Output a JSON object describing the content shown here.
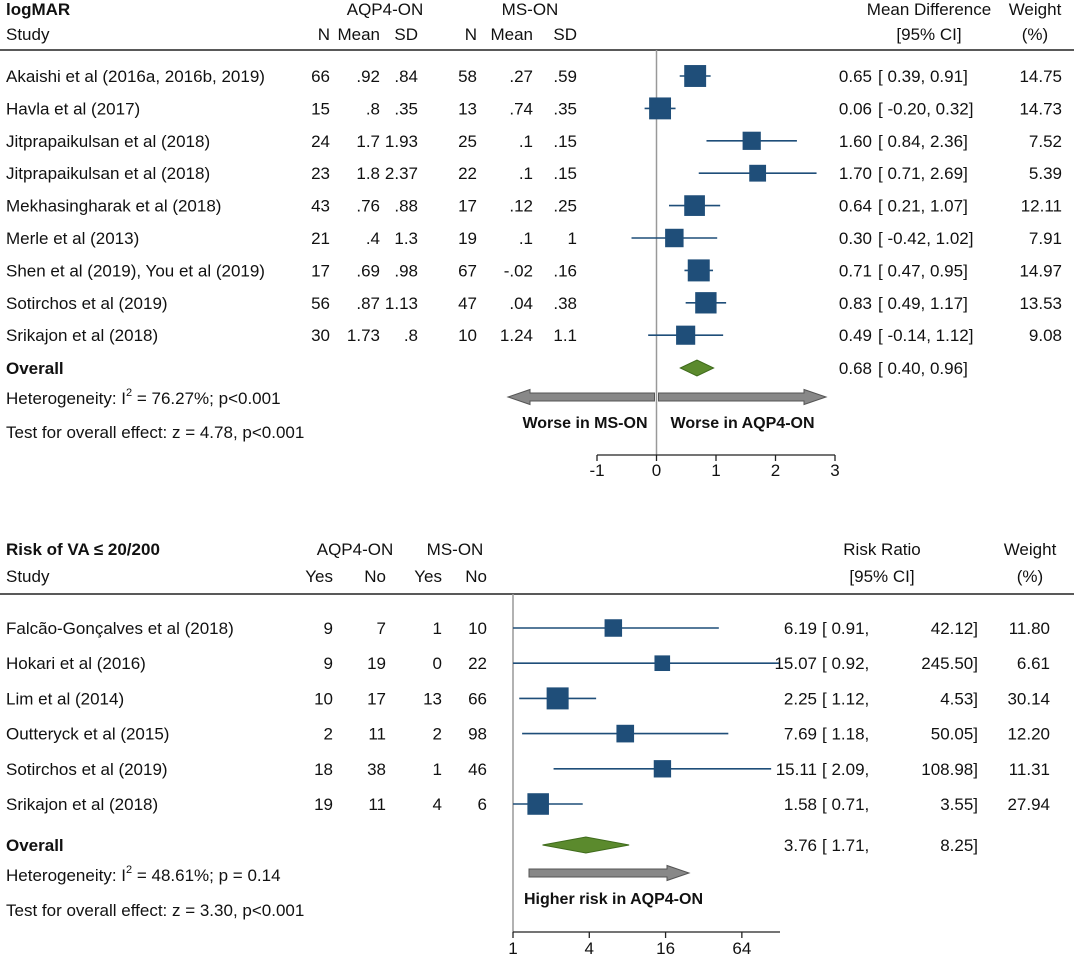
{
  "colors": {
    "marker": "#1f4e79",
    "diamond": "#5b8a2d",
    "arrow": "#888888",
    "axis": "#999999"
  },
  "chart_data": [
    {
      "type": "forest",
      "title": "logMAR",
      "headers": {
        "study": "Study",
        "group1": "AQP4-ON",
        "group2": "MS-ON",
        "cols1": [
          "N",
          "Mean",
          "SD"
        ],
        "cols2": [
          "N",
          "Mean",
          "SD"
        ],
        "effect_line1": "Mean Difference",
        "effect_line2": "[95% CI]",
        "weight_line1": "Weight",
        "weight_line2": "(%)"
      },
      "x_scale": "linear",
      "xlim": [
        -1,
        3
      ],
      "xticks": [
        -1,
        0,
        1,
        2,
        3
      ],
      "xtick_labels": [
        "-1",
        "0",
        "1",
        "2",
        "3"
      ],
      "null_value": 0,
      "studies": [
        {
          "name": "Akaishi et al (2016a, 2016b, 2019)",
          "g1": [
            "66",
            ".92",
            ".84"
          ],
          "g2": [
            "58",
            ".27",
            ".59"
          ],
          "est": 0.65,
          "lo": 0.39,
          "hi": 0.91,
          "est_text": "0.65",
          "ci_text": "[  0.39,  0.91]",
          "weight": "14.75"
        },
        {
          "name": "Havla et al (2017)",
          "g1": [
            "15",
            ".8",
            ".35"
          ],
          "g2": [
            "13",
            ".74",
            ".35"
          ],
          "est": 0.06,
          "lo": -0.2,
          "hi": 0.32,
          "est_text": "0.06",
          "ci_text": "[ -0.20,  0.32]",
          "weight": "14.73"
        },
        {
          "name": "Jitprapaikulsan et al (2018)",
          "g1": [
            "24",
            "1.7",
            "1.93"
          ],
          "g2": [
            "25",
            ".1",
            ".15"
          ],
          "est": 1.6,
          "lo": 0.84,
          "hi": 2.36,
          "est_text": "1.60",
          "ci_text": "[  0.84,  2.36]",
          "weight": "7.52"
        },
        {
          "name": "Jitprapaikulsan et al (2018)",
          "g1": [
            "23",
            "1.8",
            "2.37"
          ],
          "g2": [
            "22",
            ".1",
            ".15"
          ],
          "est": 1.7,
          "lo": 0.71,
          "hi": 2.69,
          "est_text": "1.70",
          "ci_text": "[  0.71,  2.69]",
          "weight": "5.39"
        },
        {
          "name": "Mekhasingharak et al (2018)",
          "g1": [
            "43",
            ".76",
            ".88"
          ],
          "g2": [
            "17",
            ".12",
            ".25"
          ],
          "est": 0.64,
          "lo": 0.21,
          "hi": 1.07,
          "est_text": "0.64",
          "ci_text": "[  0.21,  1.07]",
          "weight": "12.11"
        },
        {
          "name": "Merle et al (2013)",
          "g1": [
            "21",
            ".4",
            "1.3"
          ],
          "g2": [
            "19",
            ".1",
            "1"
          ],
          "est": 0.3,
          "lo": -0.42,
          "hi": 1.02,
          "est_text": "0.30",
          "ci_text": "[ -0.42,  1.02]",
          "weight": "7.91"
        },
        {
          "name": "Shen et al (2019), You et al (2019)",
          "g1": [
            "17",
            ".69",
            ".98"
          ],
          "g2": [
            "67",
            "-.02",
            ".16"
          ],
          "est": 0.71,
          "lo": 0.47,
          "hi": 0.95,
          "est_text": "0.71",
          "ci_text": "[  0.47,  0.95]",
          "weight": "14.97"
        },
        {
          "name": "Sotirchos et al (2019)",
          "g1": [
            "56",
            ".87",
            "1.13"
          ],
          "g2": [
            "47",
            ".04",
            ".38"
          ],
          "est": 0.83,
          "lo": 0.49,
          "hi": 1.17,
          "est_text": "0.83",
          "ci_text": "[  0.49,  1.17]",
          "weight": "13.53"
        },
        {
          "name": "Srikajon et al (2018)",
          "g1": [
            "30",
            "1.73",
            ".8"
          ],
          "g2": [
            "10",
            "1.24",
            "1.1"
          ],
          "est": 0.49,
          "lo": -0.14,
          "hi": 1.12,
          "est_text": "0.49",
          "ci_text": "[ -0.14,  1.12]",
          "weight": "9.08"
        }
      ],
      "overall": {
        "label": "Overall",
        "est": 0.68,
        "lo": 0.4,
        "hi": 0.96,
        "est_text": "0.68",
        "ci_text": "[  0.40,  0.96]"
      },
      "heterogeneity": {
        "prefix": "Heterogeneity: I",
        "sup": "2",
        "suffix": " = 76.27%; p<0.001"
      },
      "overall_test": "Test for overall effect: z = 4.78, p<0.001",
      "arrows": [
        {
          "label": "Worse in MS-ON",
          "direction": "left"
        },
        {
          "label": "Worse in AQP4-ON",
          "direction": "right"
        }
      ]
    },
    {
      "type": "forest",
      "title": "Risk of VA ≤ 20/200",
      "headers": {
        "study": "Study",
        "group1": "AQP4-ON",
        "group2": "MS-ON",
        "cols1": [
          "Yes",
          "No"
        ],
        "cols2": [
          "Yes",
          "No"
        ],
        "effect_line1": "Risk Ratio",
        "effect_line2": "[95% CI]",
        "weight_line1": "Weight",
        "weight_line2": "(%)"
      },
      "x_scale": "log2",
      "xlim": [
        1,
        128
      ],
      "xticks": [
        1,
        4,
        16,
        64
      ],
      "xtick_labels": [
        "1",
        "4",
        "16",
        "64"
      ],
      "null_value": 1,
      "studies": [
        {
          "name": "Falcão-Gonçalves et al (2018)",
          "g1": [
            "9",
            "7"
          ],
          "g2": [
            "1",
            "10"
          ],
          "est": 6.19,
          "lo": 0.91,
          "hi": 42.12,
          "est_text": "6.19",
          "ci_text": "[ 0.91,",
          "hi_text": "42.12]",
          "weight": "11.80"
        },
        {
          "name": "Hokari et al (2016)",
          "g1": [
            "9",
            "19"
          ],
          "g2": [
            "0",
            "22"
          ],
          "est": 15.07,
          "lo": 0.92,
          "hi": 245.5,
          "est_text": "15.07",
          "ci_text": "[ 0.92,",
          "hi_text": "245.50]",
          "weight": "6.61"
        },
        {
          "name": "Lim et al (2014)",
          "g1": [
            "10",
            "17"
          ],
          "g2": [
            "13",
            "66"
          ],
          "est": 2.25,
          "lo": 1.12,
          "hi": 4.53,
          "est_text": "2.25",
          "ci_text": "[ 1.12,",
          "hi_text": "4.53]",
          "weight": "30.14"
        },
        {
          "name": "Outteryck et al (2015)",
          "g1": [
            "2",
            "11"
          ],
          "g2": [
            "2",
            "98"
          ],
          "est": 7.69,
          "lo": 1.18,
          "hi": 50.05,
          "est_text": "7.69",
          "ci_text": "[ 1.18,",
          "hi_text": "50.05]",
          "weight": "12.20"
        },
        {
          "name": "Sotirchos et al (2019)",
          "g1": [
            "18",
            "38"
          ],
          "g2": [
            "1",
            "46"
          ],
          "est": 15.11,
          "lo": 2.09,
          "hi": 108.98,
          "est_text": "15.11",
          "ci_text": "[ 2.09,",
          "hi_text": "108.98]",
          "weight": "11.31"
        },
        {
          "name": "Srikajon et al (2018)",
          "g1": [
            "19",
            "11"
          ],
          "g2": [
            "4",
            "6"
          ],
          "est": 1.58,
          "lo": 0.71,
          "hi": 3.55,
          "est_text": "1.58",
          "ci_text": "[ 0.71,",
          "hi_text": "3.55]",
          "weight": "27.94"
        }
      ],
      "overall": {
        "label": "Overall",
        "est": 3.76,
        "lo": 1.71,
        "hi": 8.25,
        "est_text": "3.76",
        "ci_text": "[ 1.71,",
        "hi_text": "8.25]"
      },
      "heterogeneity": {
        "prefix": "Heterogeneity: I",
        "sup": "2",
        "suffix": " = 48.61%; p = 0.14"
      },
      "overall_test": "Test for overall effect: z = 3.30, p<0.001",
      "arrows": [
        {
          "label": "Higher risk in AQP4-ON",
          "direction": "right"
        }
      ]
    }
  ]
}
